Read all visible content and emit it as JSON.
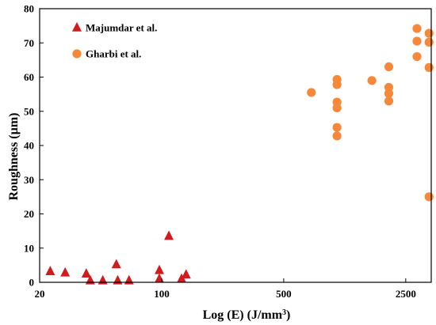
{
  "chart_data": {
    "type": "scatter",
    "title": "",
    "xlabel": "Log (E) (J/mm",
    "xlabel_sup": "3",
    "xlabel_close": ")",
    "ylabel": "Roughness (µm)",
    "xscale": "log",
    "xlim": [
      20,
      3500
    ],
    "ylim": [
      0,
      80
    ],
    "xticks": [
      20,
      100,
      500,
      2500
    ],
    "xtick_labels": [
      "20",
      "100",
      "500",
      "2500"
    ],
    "yticks": [
      0,
      10,
      20,
      30,
      40,
      50,
      60,
      70,
      80
    ],
    "ytick_labels": [
      "0",
      "10",
      "20",
      "30",
      "40",
      "50",
      "60",
      "70",
      "80"
    ],
    "grid": false,
    "legend_position": "top-left",
    "series": [
      {
        "name": "Majumdar et al.",
        "marker": "triangle",
        "color": "#d01c1c",
        "points": [
          [
            23,
            3.2
          ],
          [
            28,
            2.8
          ],
          [
            37,
            2.5
          ],
          [
            39,
            0.5
          ],
          [
            46,
            0.5
          ],
          [
            55,
            5.2
          ],
          [
            56,
            0.5
          ],
          [
            65,
            0.5
          ],
          [
            97,
            3.5
          ],
          [
            97,
            1.0
          ],
          [
            110,
            13.5
          ],
          [
            130,
            1.0
          ],
          [
            138,
            2.2
          ]
        ]
      },
      {
        "name": "Gharbi et al.",
        "marker": "circle",
        "color": "#f5883a",
        "points": [
          [
            720,
            55.5
          ],
          [
            1010,
            59.3
          ],
          [
            1010,
            57.8
          ],
          [
            1010,
            52.7
          ],
          [
            1010,
            51.0
          ],
          [
            1010,
            45.3
          ],
          [
            1010,
            42.8
          ],
          [
            1600,
            59.0
          ],
          [
            2000,
            63.0
          ],
          [
            2000,
            57.0
          ],
          [
            2000,
            55.2
          ],
          [
            2000,
            53.0
          ],
          [
            2900,
            74.2
          ],
          [
            2900,
            70.5
          ],
          [
            2900,
            66.0
          ],
          [
            3400,
            72.8
          ],
          [
            3400,
            70.2
          ],
          [
            3400,
            62.8
          ],
          [
            3400,
            25.0
          ]
        ]
      }
    ]
  }
}
